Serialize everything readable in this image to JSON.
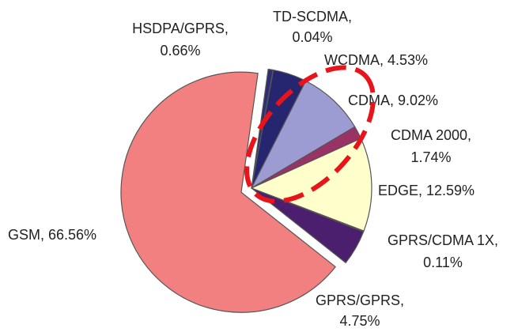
{
  "chart_data": {
    "type": "pie",
    "values": [
      0.66,
      0.04,
      4.53,
      9.02,
      1.74,
      12.59,
      0.11,
      4.75,
      66.56
    ],
    "value_labels": [
      [
        "HSDPA/GPRS,",
        "0.66%"
      ],
      [
        "TD-SCDMA,",
        "0.04%"
      ],
      [
        "WCDMA, 4.53%"
      ],
      [
        "CDMA, 9.02%"
      ],
      [
        "CDMA 2000,",
        "1.74%"
      ],
      [
        "EDGE, 12.59%"
      ],
      [
        "GPRS/CDMA 1X,",
        "0.11%"
      ],
      [
        "GPRS/GPRS,",
        "4.75%"
      ],
      [
        "GSM, 66.56%"
      ]
    ],
    "colors": [
      "#2e2e78",
      "#1e1e5a",
      "#262670",
      "#9c9cd2",
      "#993366",
      "#ffffcc",
      "#c8c8f0",
      "#4b1f6e",
      "#f28080"
    ],
    "exploded": [
      false,
      false,
      false,
      false,
      false,
      false,
      false,
      false,
      true
    ]
  }
}
